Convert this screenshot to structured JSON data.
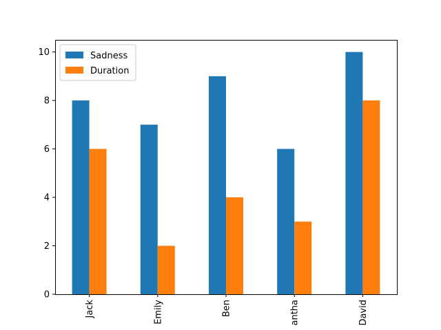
{
  "chart_data": {
    "type": "bar",
    "title": "",
    "xlabel": "",
    "ylabel": "",
    "categories": [
      "Jack",
      "Emily",
      "Ben",
      "antha",
      "David"
    ],
    "series": [
      {
        "name": "Sadness",
        "values": [
          8,
          7,
          9,
          6,
          10
        ],
        "color": "#1f77b4"
      },
      {
        "name": "Duration",
        "values": [
          6,
          2,
          4,
          3,
          8
        ],
        "color": "#ff7f0e"
      }
    ],
    "ylim": [
      0,
      10.5
    ],
    "yticks": [
      0,
      2,
      4,
      6,
      8,
      10
    ],
    "xtick_rotation": 90,
    "grid": false,
    "legend_position": "top-left"
  }
}
